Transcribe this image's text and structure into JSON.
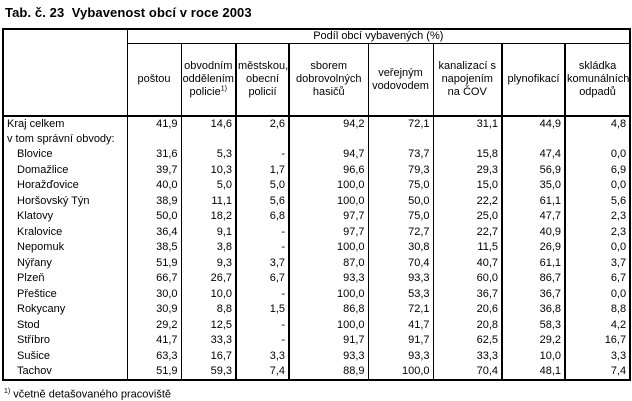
{
  "page": {
    "title": "Tab. č. 23  Vybavenost obcí v roce 2003"
  },
  "table": {
    "group_header": "Podíl obcí vybavených (%)",
    "columns": [
      {
        "label": "poštou",
        "sup": ""
      },
      {
        "label": "obvodním oddělením policie",
        "sup": "1)"
      },
      {
        "label": "městskou, obecní policií",
        "sup": ""
      },
      {
        "label": "sborem dobrovolných hasičů",
        "sup": ""
      },
      {
        "label": "veřejným vodovodem",
        "sup": ""
      },
      {
        "label": "kanalizací s napojením na ČOV",
        "sup": ""
      },
      {
        "label": "plynofikací",
        "sup": ""
      },
      {
        "label": "skládka komunálních odpadů",
        "sup": ""
      }
    ],
    "rows": [
      {
        "label": "Kraj celkem",
        "bold": true,
        "indent": false,
        "values": [
          "41,9",
          "14,6",
          "2,6",
          "94,2",
          "72,1",
          "31,1",
          "44,9",
          "4,8"
        ]
      },
      {
        "label": "v tom správní obvody:",
        "bold": false,
        "indent": false,
        "values": [
          "",
          "",
          "",
          "",
          "",
          "",
          "",
          ""
        ]
      },
      {
        "label": "Blovice",
        "bold": false,
        "indent": true,
        "values": [
          "31,6",
          "5,3",
          "-",
          "94,7",
          "73,7",
          "15,8",
          "47,4",
          "0,0"
        ]
      },
      {
        "label": "Domažlice",
        "bold": false,
        "indent": true,
        "values": [
          "39,7",
          "10,3",
          "1,7",
          "96,6",
          "79,3",
          "29,3",
          "56,9",
          "6,9"
        ]
      },
      {
        "label": "Horažďovice",
        "bold": false,
        "indent": true,
        "values": [
          "40,0",
          "5,0",
          "5,0",
          "100,0",
          "75,0",
          "15,0",
          "35,0",
          "0,0"
        ]
      },
      {
        "label": "Horšovský Týn",
        "bold": false,
        "indent": true,
        "values": [
          "38,9",
          "11,1",
          "5,6",
          "100,0",
          "50,0",
          "22,2",
          "61,1",
          "5,6"
        ]
      },
      {
        "label": "Klatovy",
        "bold": false,
        "indent": true,
        "values": [
          "50,0",
          "18,2",
          "6,8",
          "97,7",
          "75,0",
          "25,0",
          "47,7",
          "2,3"
        ]
      },
      {
        "label": "Kralovice",
        "bold": false,
        "indent": true,
        "values": [
          "36,4",
          "9,1",
          "-",
          "97,7",
          "72,7",
          "22,7",
          "40,9",
          "2,3"
        ]
      },
      {
        "label": "Nepomuk",
        "bold": false,
        "indent": true,
        "values": [
          "38,5",
          "3,8",
          "-",
          "100,0",
          "30,8",
          "11,5",
          "26,9",
          "0,0"
        ]
      },
      {
        "label": "Nýřany",
        "bold": false,
        "indent": true,
        "values": [
          "51,9",
          "9,3",
          "3,7",
          "87,0",
          "70,4",
          "40,7",
          "61,1",
          "3,7"
        ]
      },
      {
        "label": "Plzeň",
        "bold": false,
        "indent": true,
        "values": [
          "66,7",
          "26,7",
          "6,7",
          "93,3",
          "93,3",
          "60,0",
          "86,7",
          "6,7"
        ]
      },
      {
        "label": "Přeštice",
        "bold": false,
        "indent": true,
        "values": [
          "30,0",
          "10,0",
          "-",
          "100,0",
          "53,3",
          "36,7",
          "36,7",
          "0,0"
        ]
      },
      {
        "label": "Rokycany",
        "bold": false,
        "indent": true,
        "values": [
          "30,9",
          "8,8",
          "1,5",
          "86,8",
          "72,1",
          "20,6",
          "36,8",
          "8,8"
        ]
      },
      {
        "label": "Stod",
        "bold": false,
        "indent": true,
        "values": [
          "29,2",
          "12,5",
          "-",
          "100,0",
          "41,7",
          "20,8",
          "58,3",
          "4,2"
        ]
      },
      {
        "label": "Stříbro",
        "bold": false,
        "indent": true,
        "values": [
          "41,7",
          "33,3",
          "-",
          "91,7",
          "91,7",
          "62,5",
          "29,2",
          "16,7"
        ]
      },
      {
        "label": "Sušice",
        "bold": false,
        "indent": true,
        "values": [
          "63,3",
          "16,7",
          "3,3",
          "93,3",
          "93,3",
          "33,3",
          "10,0",
          "3,3"
        ]
      },
      {
        "label": "Tachov",
        "bold": false,
        "indent": true,
        "values": [
          "51,9",
          "59,3",
          "7,4",
          "88,9",
          "100,0",
          "70,4",
          "48,1",
          "7,4"
        ]
      }
    ]
  },
  "footnote": {
    "sup": "1)",
    "text": "včetně detašovaného pracoviště"
  }
}
